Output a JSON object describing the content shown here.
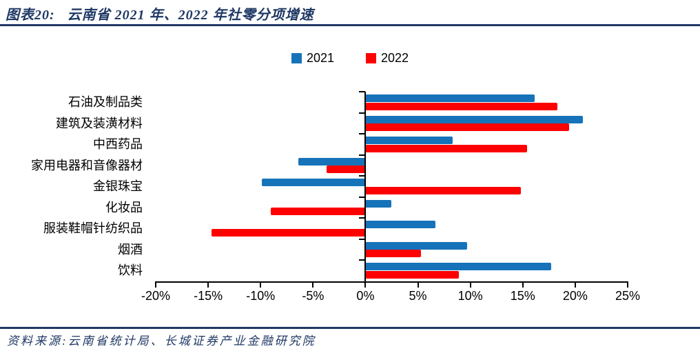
{
  "header": {
    "label": "图表20:",
    "title": "云南省 2021 年、2022 年社零分项增速"
  },
  "footer": {
    "source": "资料来源:云南省统计局、长城证券产业金融研究院"
  },
  "colors": {
    "accent": "#1F3864",
    "series_2021": "#1673B9",
    "series_2022": "#FE0000",
    "axis": "#000000"
  },
  "chart_data": {
    "type": "bar",
    "orientation": "horizontal",
    "title": "云南省 2021 年、2022 年社零分项增速",
    "categories": [
      "石油及制品类",
      "建筑及装潢材料",
      "中西药品",
      "家用电器和音像器材",
      "金银珠宝",
      "化妆品",
      "服装鞋帽针纺织品",
      "烟酒",
      "饮料"
    ],
    "series": [
      {
        "name": "2021",
        "color": "#1673B9",
        "values": [
          16.1,
          20.7,
          8.3,
          -6.4,
          -9.9,
          2.5,
          6.7,
          9.7,
          17.7
        ]
      },
      {
        "name": "2022",
        "color": "#FE0000",
        "values": [
          18.3,
          19.4,
          15.4,
          -3.7,
          14.8,
          -9.0,
          -14.7,
          5.3,
          8.9
        ]
      }
    ],
    "xlim": [
      -20,
      25
    ],
    "x_tick_values": [
      -20,
      -15,
      -10,
      -5,
      0,
      5,
      10,
      15,
      20,
      25
    ],
    "x_ticks": [
      "-20%",
      "-15%",
      "-10%",
      "-5%",
      "0%",
      "5%",
      "10%",
      "15%",
      "20%",
      "25%"
    ],
    "grid": "off",
    "legend_position": "top-center"
  }
}
